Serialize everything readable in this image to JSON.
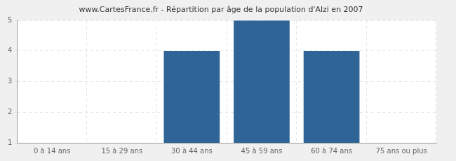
{
  "chart_data": {
    "type": "bar",
    "title": "www.CartesFrance.fr - Répartition par âge de la population d'Alzi en 2007",
    "categories": [
      "0 à 14 ans",
      "15 à 29 ans",
      "30 à 44 ans",
      "45 à 59 ans",
      "60 à 74 ans",
      "75 ans ou plus"
    ],
    "values": [
      1,
      1,
      4,
      5,
      4,
      1
    ],
    "color": "#2e6496",
    "ylim": [
      1,
      5
    ],
    "yticks": [
      1,
      2,
      3,
      4,
      5
    ],
    "grid": true
  }
}
